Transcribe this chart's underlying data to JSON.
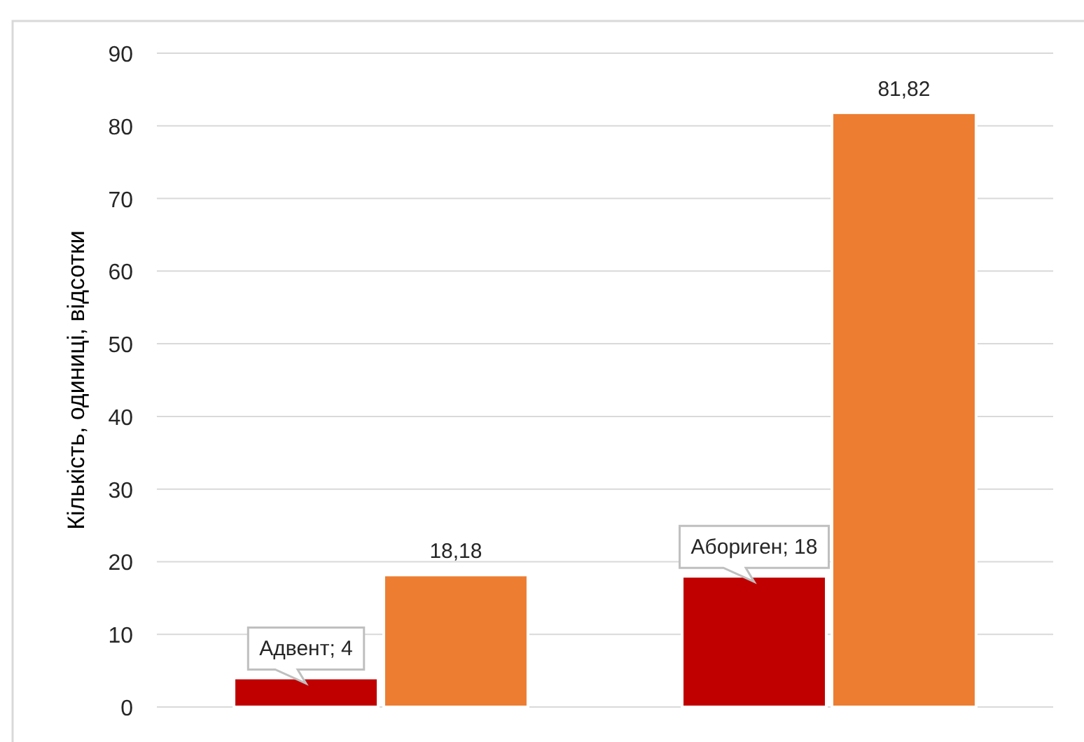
{
  "chart_data": {
    "type": "bar",
    "ylabel": "Кількість, одиниці, відсотки",
    "categories": [
      null,
      null
    ],
    "series": [
      {
        "color": "#c00000",
        "values": [
          4,
          18
        ],
        "value_labels": [
          "Адвент; 4",
          "Абориген; 18"
        ]
      },
      {
        "color": "#ed7d31",
        "values": [
          18.18,
          81.82
        ],
        "value_labels": [
          "18,18",
          "81,82"
        ]
      }
    ],
    "ylim": [
      0,
      90
    ],
    "yticks": [
      0,
      10,
      20,
      30,
      40,
      50,
      60,
      70,
      80,
      90
    ],
    "grid": "y",
    "tick_labels": "y"
  }
}
